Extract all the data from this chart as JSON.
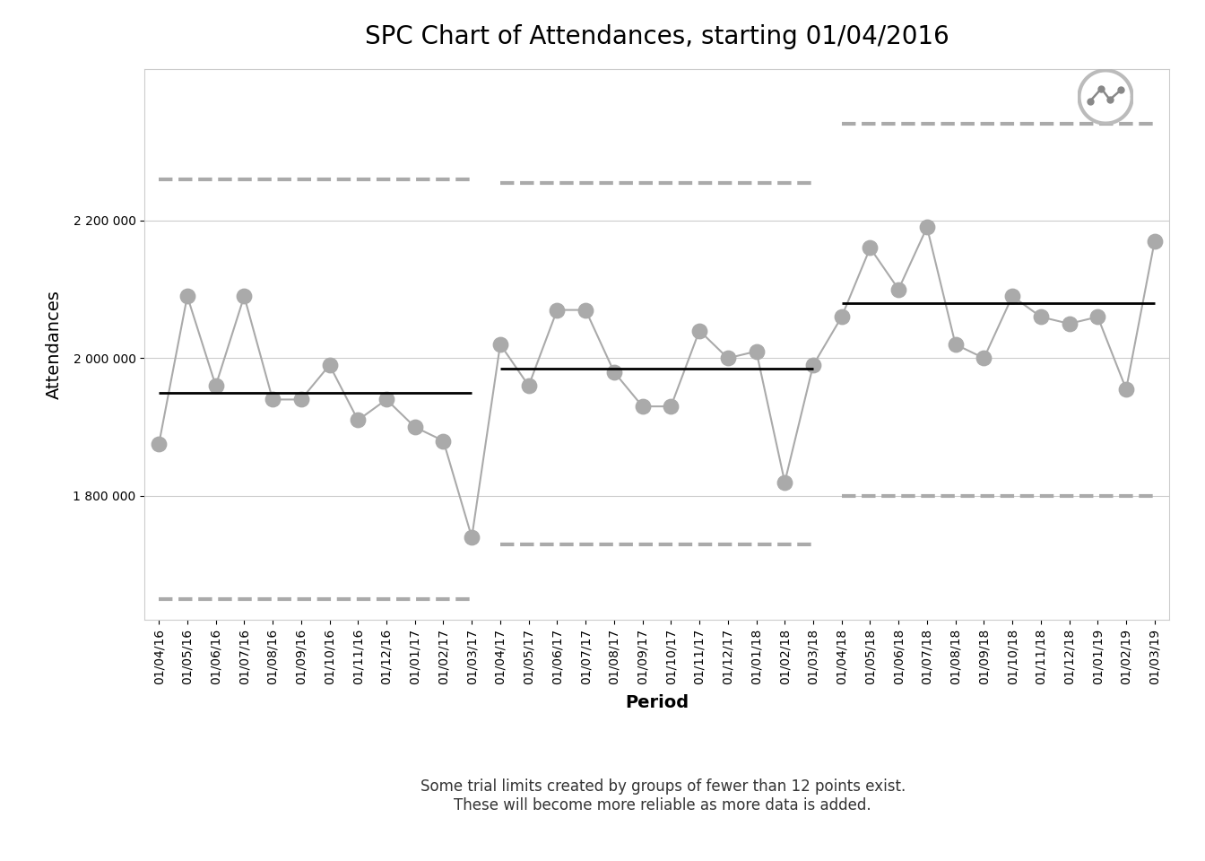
{
  "title": "SPC Chart of Attendances, starting 01/04/2016",
  "ylabel": "Attendances",
  "xlabel": "Period",
  "caption": "Some trial limits created by groups of fewer than 12 points exist.\nThese will become more reliable as more data is added.",
  "dates": [
    "01/04/16",
    "01/05/16",
    "01/06/16",
    "01/07/16",
    "01/08/16",
    "01/09/16",
    "01/10/16",
    "01/11/16",
    "01/12/16",
    "01/01/17",
    "01/02/17",
    "01/03/17",
    "01/04/17",
    "01/05/17",
    "01/06/17",
    "01/07/17",
    "01/08/17",
    "01/09/17",
    "01/10/17",
    "01/11/17",
    "01/12/17",
    "01/01/18",
    "01/02/18",
    "01/03/18",
    "01/04/18",
    "01/05/18",
    "01/06/18",
    "01/07/18",
    "01/08/18",
    "01/09/18",
    "01/10/18",
    "01/11/18",
    "01/12/18",
    "01/01/19",
    "01/02/19",
    "01/03/19"
  ],
  "values": [
    1875000,
    2090000,
    1960000,
    2090000,
    1940000,
    1940000,
    1990000,
    1910000,
    1940000,
    1900000,
    1880000,
    1740000,
    2020000,
    1960000,
    2070000,
    2070000,
    1980000,
    1930000,
    1930000,
    2040000,
    2000000,
    2010000,
    1820000,
    1990000,
    2060000,
    2160000,
    2100000,
    2190000,
    2020000,
    2000000,
    2090000,
    2060000,
    2050000,
    2060000,
    1955000,
    2170000
  ],
  "sections": [
    {
      "indices": [
        0,
        11
      ],
      "mean": 1950000,
      "ucl": 2260000,
      "lcl": 1650000
    },
    {
      "indices": [
        12,
        23
      ],
      "mean": 1985000,
      "ucl": 2255000,
      "lcl": 1730000
    },
    {
      "indices": [
        24,
        35
      ],
      "mean": 2080000,
      "ucl": 2340000,
      "lcl": 1800000
    }
  ],
  "point_color": "#aaaaaa",
  "line_color": "#aaaaaa",
  "mean_color": "#000000",
  "limit_color": "#aaaaaa",
  "background_color": "#ffffff",
  "ylim_min": 1620000,
  "ylim_max": 2420000,
  "yticks": [
    1800000,
    2000000,
    2200000
  ],
  "ytick_labels": [
    "1 800 000",
    "2 000 000",
    "2 200 000"
  ],
  "title_fontsize": 20,
  "axis_fontsize": 14,
  "tick_fontsize": 10,
  "caption_fontsize": 12
}
